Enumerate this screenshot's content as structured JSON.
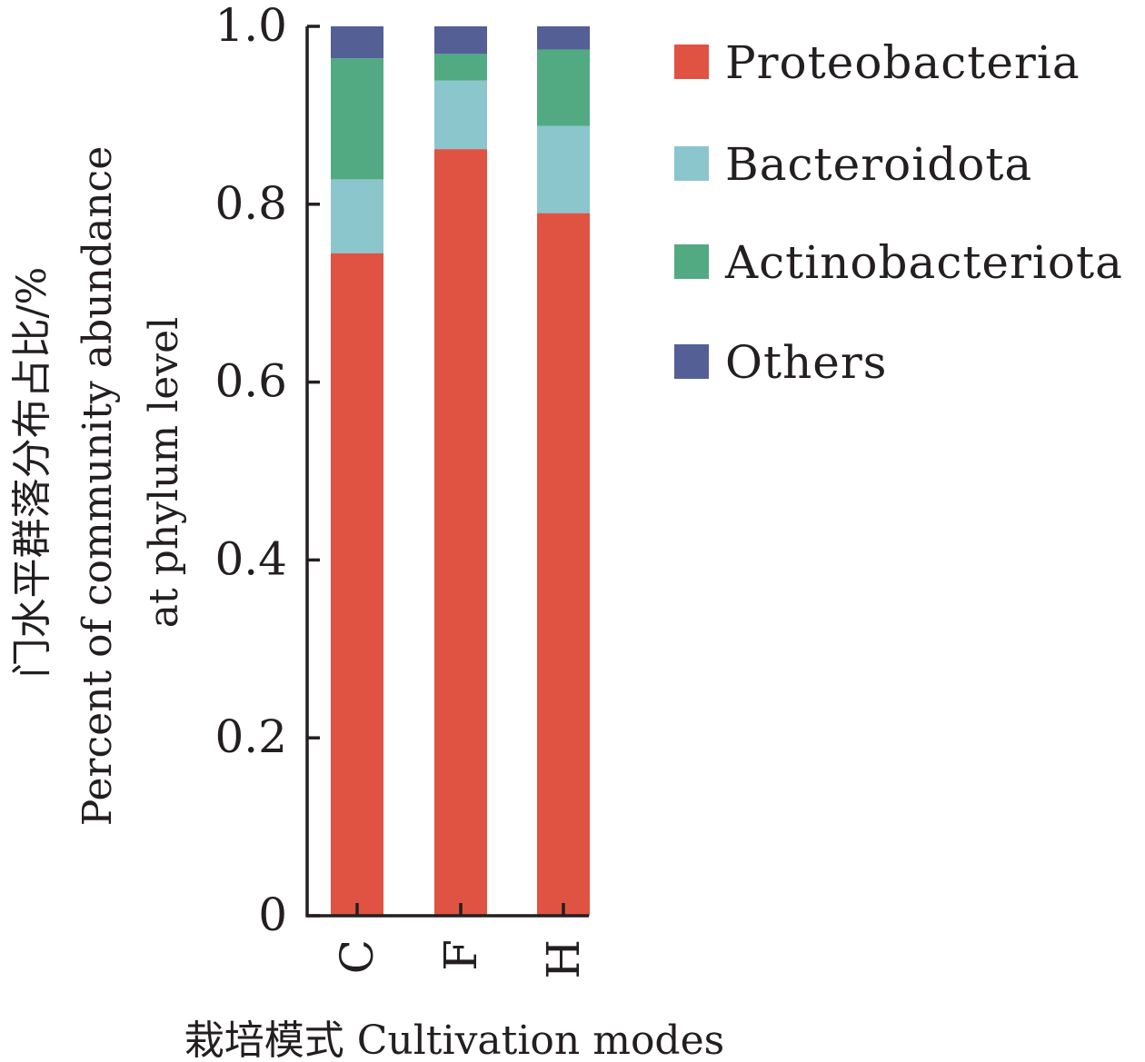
{
  "chart_data": {
    "type": "bar",
    "stacked": true,
    "categories": [
      "C",
      "F",
      "H"
    ],
    "series": [
      {
        "name": "Proteobacteria",
        "color": "#e05343",
        "values": [
          0.745,
          0.862,
          0.79
        ]
      },
      {
        "name": "Bacteroidota",
        "color": "#8bc6cc",
        "values": [
          0.083,
          0.077,
          0.098
        ]
      },
      {
        "name": "Actinobacteriota",
        "color": "#52aa83",
        "values": [
          0.136,
          0.03,
          0.086
        ]
      },
      {
        "name": "Others",
        "color": "#545f96",
        "values": [
          0.036,
          0.031,
          0.026
        ]
      }
    ],
    "ylim": [
      0,
      1.0
    ],
    "yticks": [
      "0",
      "0.2",
      "0.4",
      "0.6",
      "0.8",
      "1.0"
    ],
    "ylabel_lines": [
      "门水平群落分布占比/%",
      "Percent of community abundance",
      "at phylum level"
    ],
    "xlabel": "栽培模式 Cultivation modes",
    "legend_position": "right",
    "grid": false
  }
}
